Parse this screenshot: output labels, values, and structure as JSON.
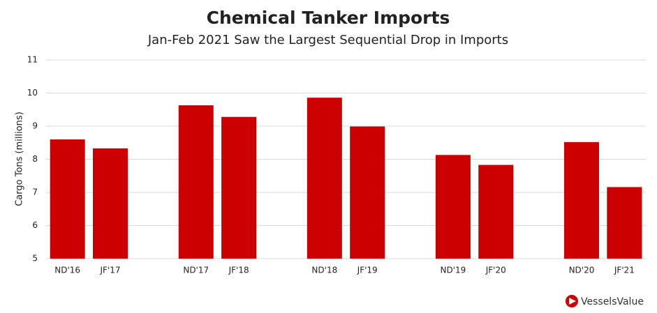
{
  "chart_data": {
    "type": "bar",
    "title": "Chemical Tanker Imports",
    "subtitle": "Jan-Feb 2021 Saw the Largest Sequential Drop in Imports",
    "y_label": "Cargo Tons (millions)",
    "categories": [
      "ND'16",
      "JF'17",
      null,
      "ND'17",
      "JF'18",
      null,
      "ND'18",
      "JF'19",
      null,
      "ND'19",
      "JF'20",
      null,
      "ND'20",
      "JF'21"
    ],
    "values": [
      8.6,
      8.33,
      null,
      9.63,
      9.28,
      null,
      9.86,
      8.99,
      null,
      8.13,
      7.83,
      null,
      8.52,
      7.16
    ],
    "color": "#cc0000",
    "ylim": [
      5,
      11
    ],
    "yticks": [
      5,
      6,
      7,
      8,
      9,
      10,
      11
    ],
    "grid": true
  },
  "logo": "VesselsValue"
}
